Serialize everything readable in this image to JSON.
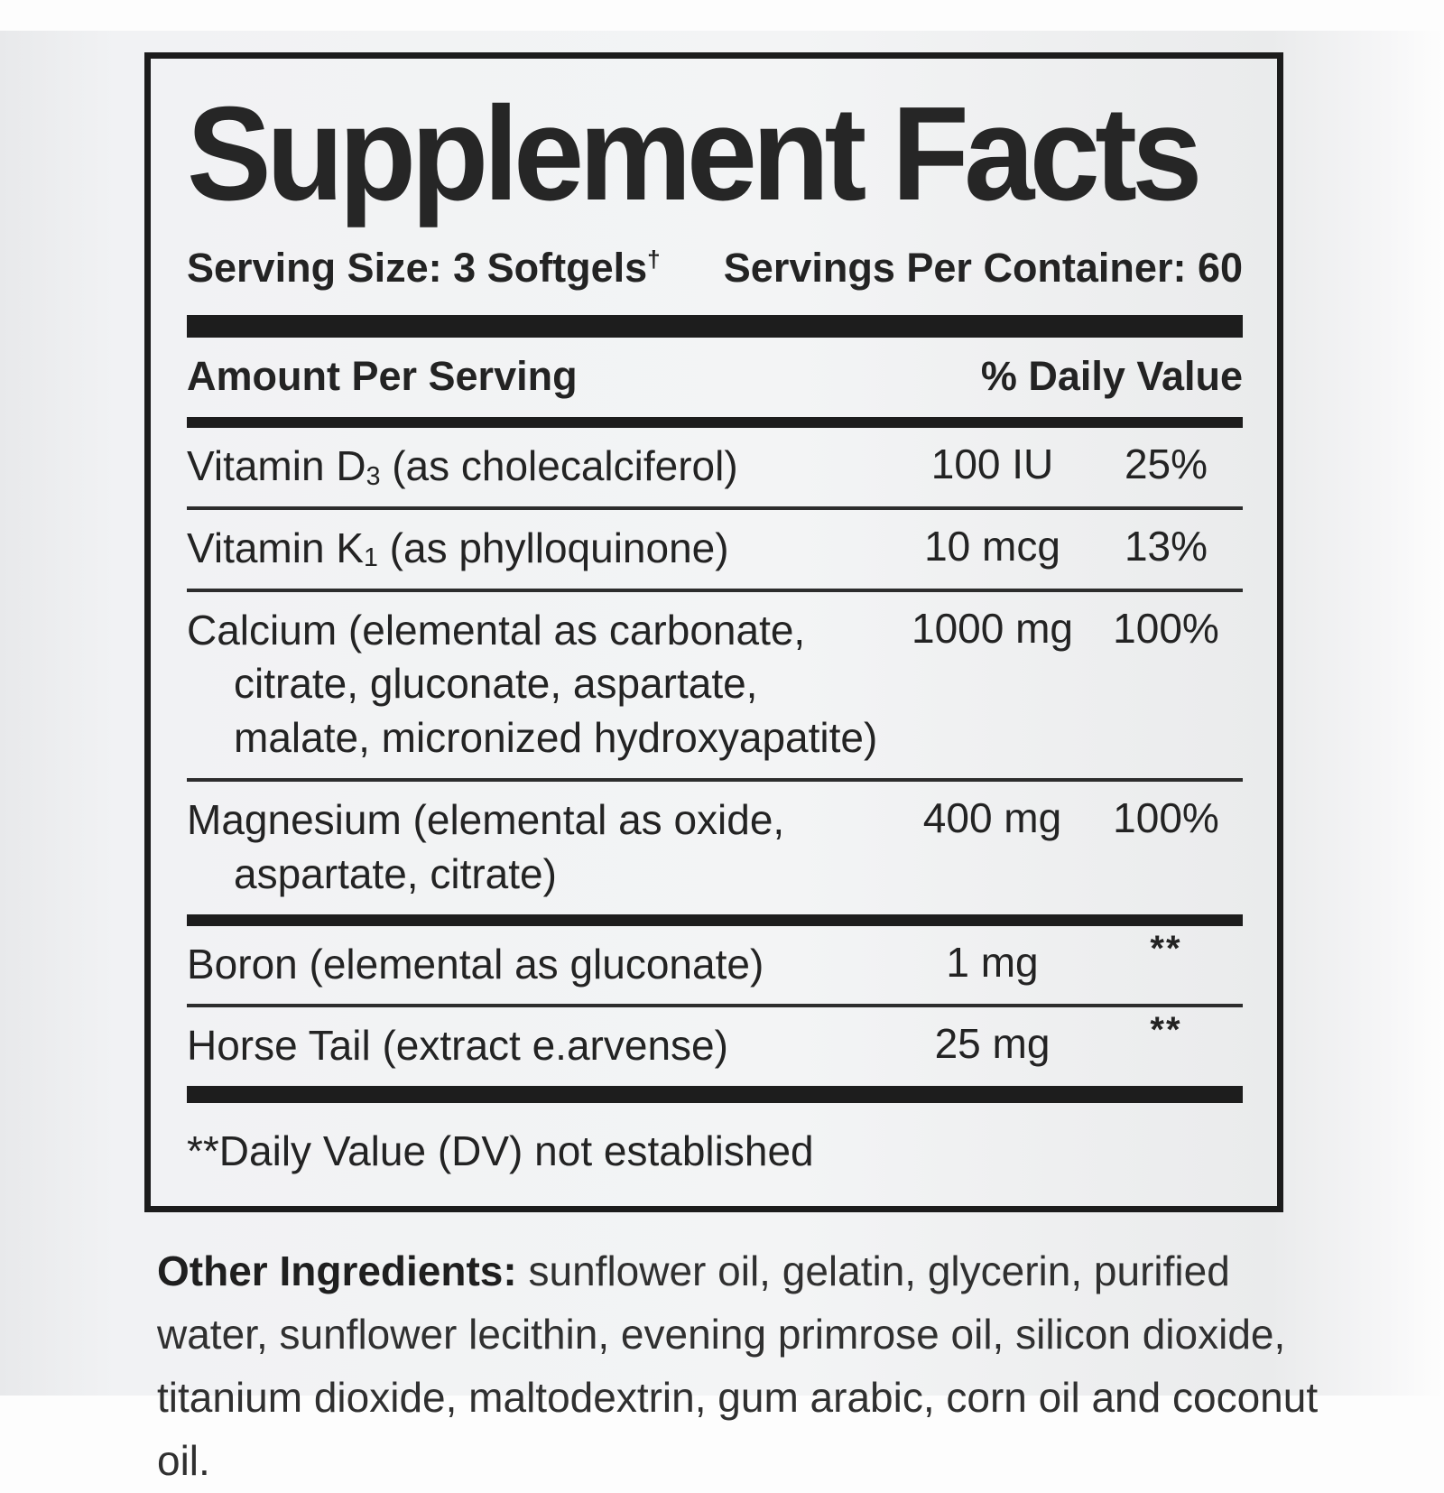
{
  "label": {
    "title": "Supplement Facts",
    "serving": {
      "size_label": "Serving Size: 3 Softgels",
      "size_sup": "†",
      "per_container": "Servings Per Container: 60"
    },
    "header": {
      "amount": "Amount Per Serving",
      "daily_value": "% Daily Value"
    },
    "rows": [
      {
        "name_pre": "Vitamin D",
        "name_sub": "3",
        "name_post": " (as cholecalciferol)",
        "amount": "100 IU",
        "dv": "25%"
      },
      {
        "name_pre": "Vitamin K",
        "name_sub": "1",
        "name_post": " (as phylloquinone)",
        "amount": "10 mcg",
        "dv": "13%"
      },
      {
        "name_pre": "Calcium (elemental as carbonate,",
        "name_line2": "citrate, gluconate, aspartate,",
        "name_line3": "malate, micronized hydroxyapatite)",
        "amount": "1000 mg",
        "dv": "100%"
      },
      {
        "name_pre": "Magnesium (elemental as oxide,",
        "name_line2": "aspartate, citrate)",
        "amount": "400 mg",
        "dv": "100%"
      },
      {
        "name_pre": "Boron (elemental as gluconate)",
        "amount": "1 mg",
        "dv": "**"
      },
      {
        "name_pre": "Horse Tail (extract e.arvense)",
        "amount": "25 mg",
        "dv": "**"
      }
    ],
    "footnote": "**Daily Value (DV) not established",
    "other_ingredients": {
      "lead": "Other Ingredients:",
      "text": " sunflower oil, gelatin, glycerin, purified water, sunflower lecithin, evening primrose oil, silicon dioxide, titanium dioxide, maltodextrin, gum arabic, corn oil and coconut oil."
    },
    "colors": {
      "ink": "#232323",
      "bar": "#1d1d1d",
      "label_bg": "#f1f2f4"
    }
  }
}
